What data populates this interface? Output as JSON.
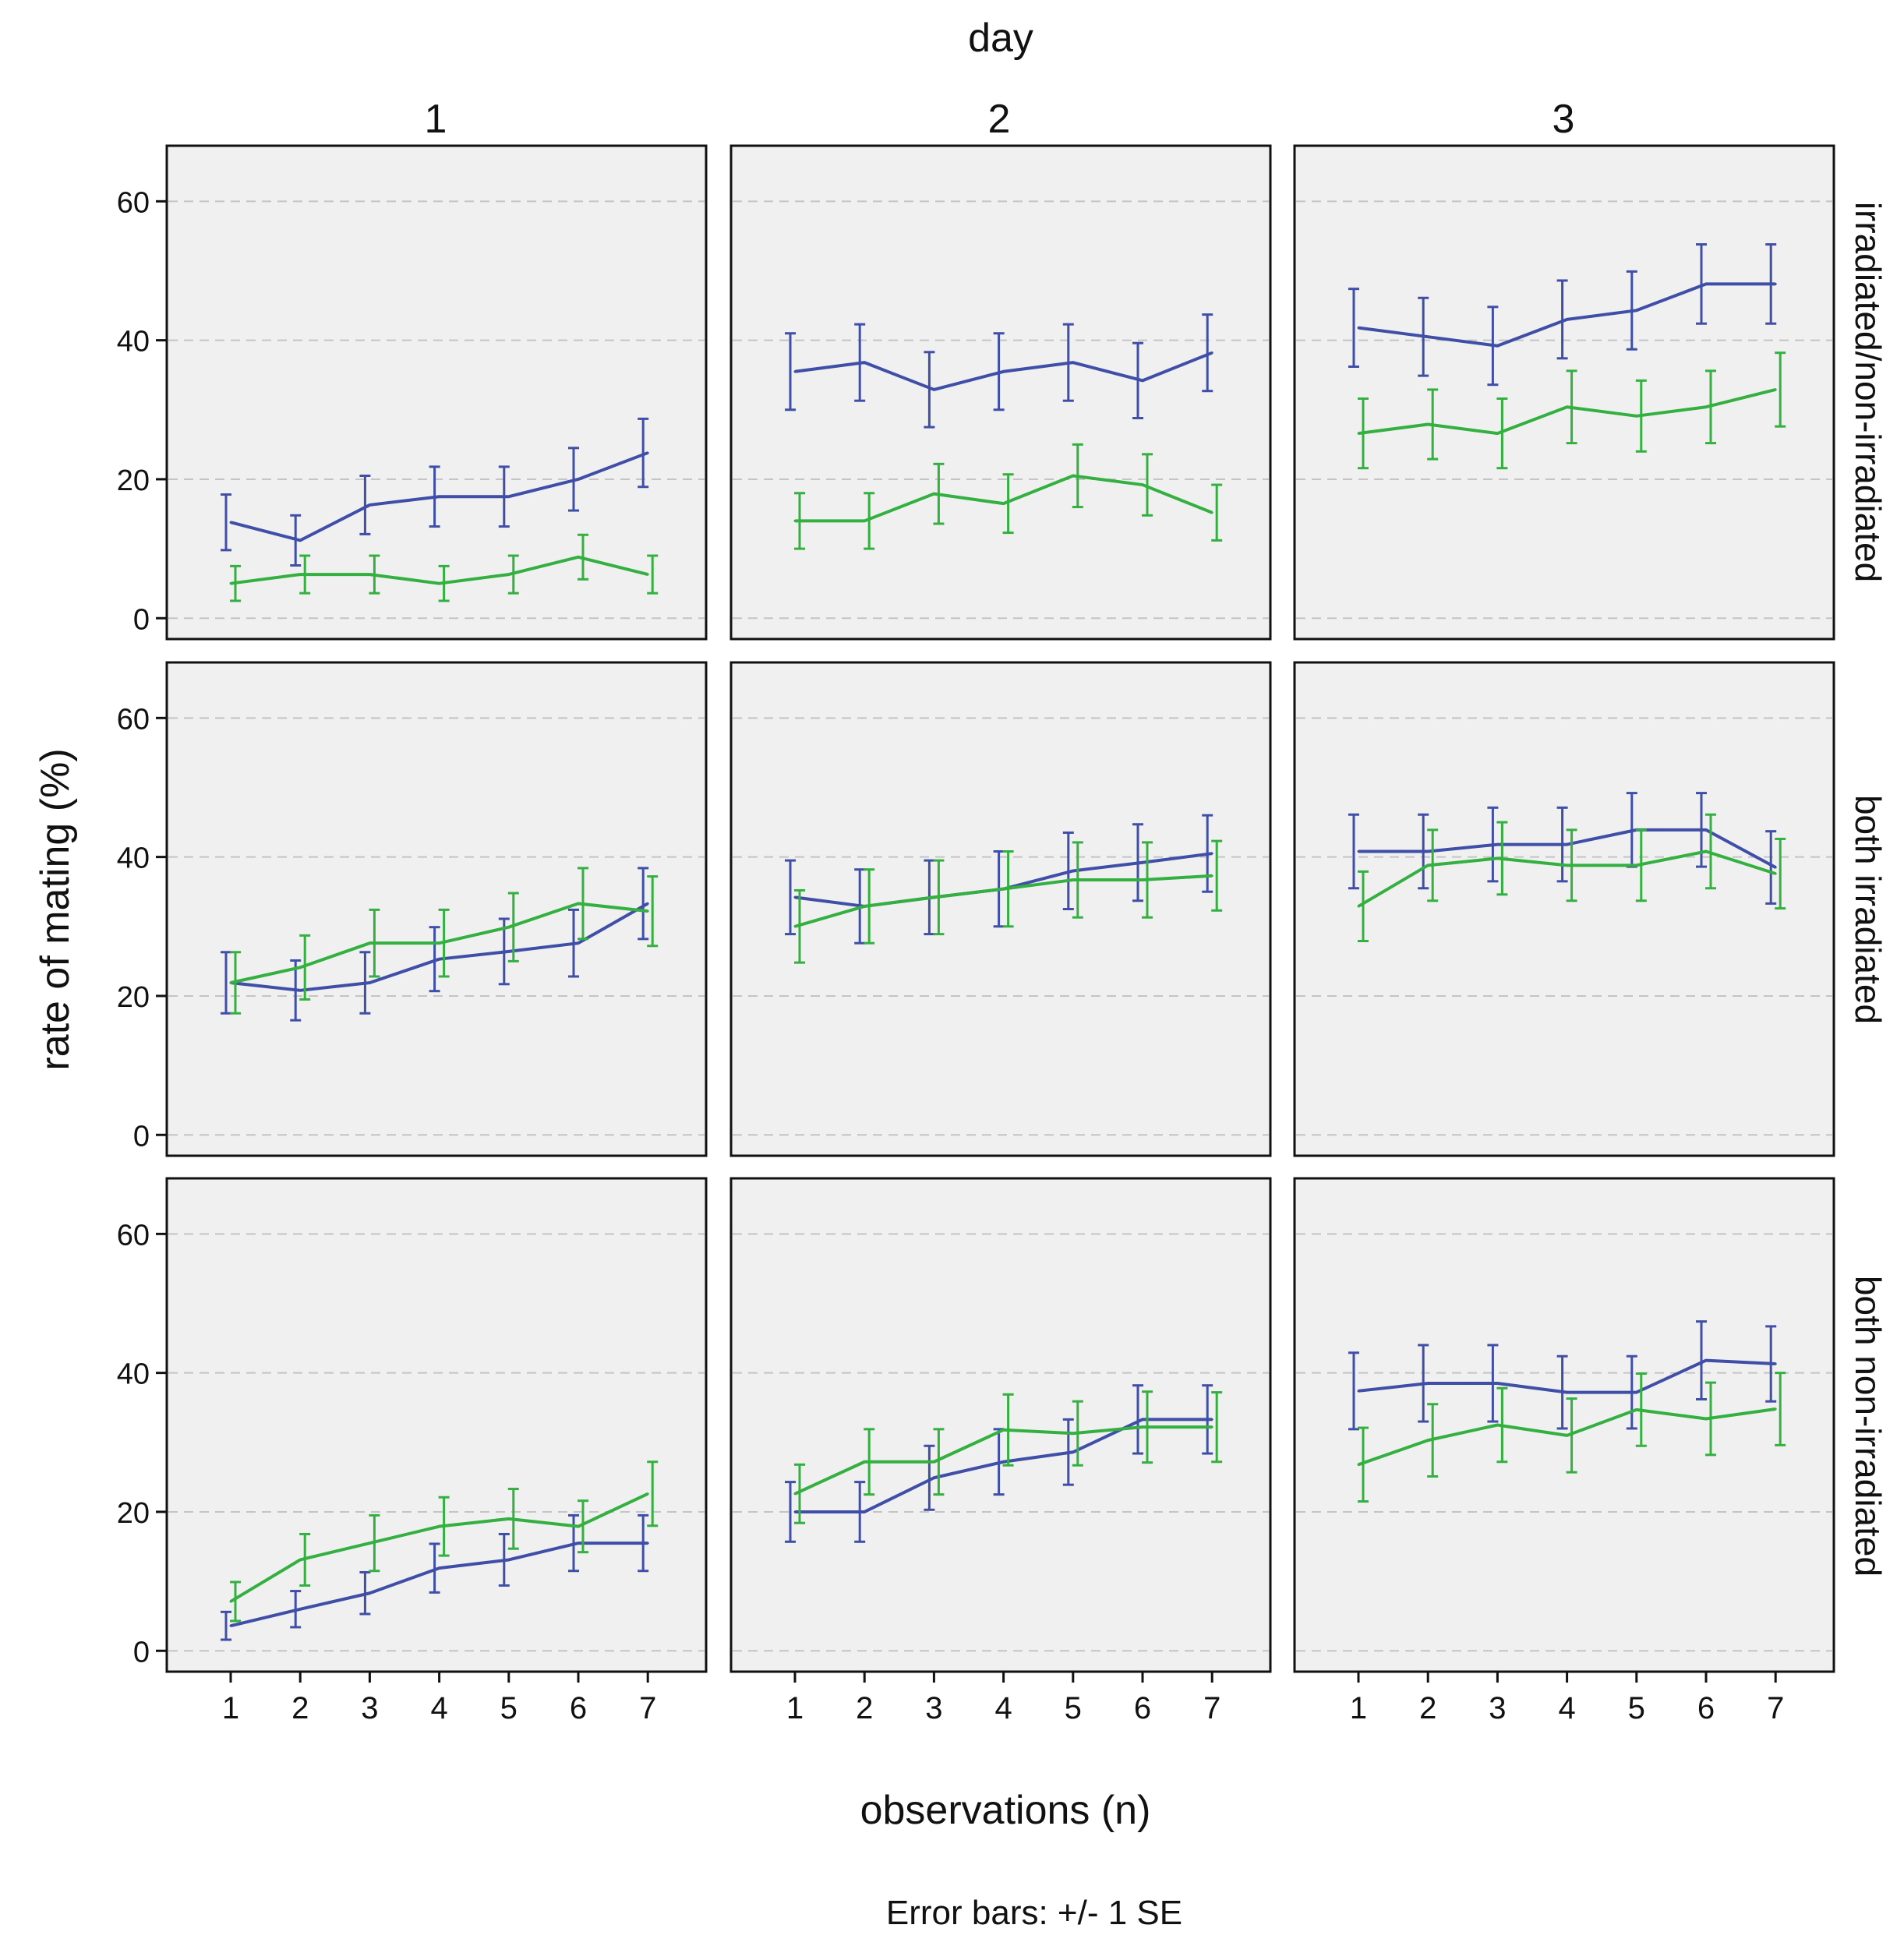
{
  "chart_data": {
    "type": "line",
    "col_var_label": "day",
    "columns": [
      "1",
      "2",
      "3"
    ],
    "rows": [
      "irradiated/non-irradiated",
      "both irradiated",
      "both non-irradiated"
    ],
    "ylabel": "rate of mating (%)",
    "xlabel": "observations (n)",
    "footnote": "Error bars: +/- 1 SE",
    "x": [
      1,
      2,
      3,
      4,
      5,
      6,
      7
    ],
    "x_tick_labels": [
      "1",
      "2",
      "3",
      "4",
      "5",
      "6",
      "7"
    ],
    "ylim": [
      -3,
      68
    ],
    "y_ticks": [
      0,
      20,
      40,
      60
    ],
    "y_tick_labels": [
      "0",
      "20",
      "40",
      "60"
    ],
    "grid": "dashed horizontal at y ticks",
    "colors": {
      "panel_bg": "#f0f0f0",
      "blue_series": "#3f4ea7",
      "green_series": "#33b040",
      "grid": "#c4c4c4"
    },
    "panels": [
      {
        "row": 0,
        "col": 0,
        "series": [
          {
            "name": "blue",
            "values": [
              13.8,
              11.2,
              16.3,
              17.5,
              17.5,
              20.0,
              23.8
            ],
            "err": [
              4.0,
              3.6,
              4.2,
              4.3,
              4.3,
              4.5,
              4.9
            ]
          },
          {
            "name": "green",
            "values": [
              5.0,
              6.3,
              6.3,
              5.0,
              6.3,
              8.8,
              6.3
            ],
            "err": [
              2.5,
              2.7,
              2.7,
              2.5,
              2.7,
              3.2,
              2.7
            ]
          }
        ]
      },
      {
        "row": 0,
        "col": 1,
        "series": [
          {
            "name": "blue",
            "values": [
              35.5,
              36.8,
              32.9,
              35.5,
              36.8,
              34.2,
              38.2
            ],
            "err": [
              5.5,
              5.5,
              5.4,
              5.5,
              5.5,
              5.4,
              5.5
            ]
          },
          {
            "name": "green",
            "values": [
              14.0,
              14.0,
              17.9,
              16.5,
              20.5,
              19.2,
              15.2
            ],
            "err": [
              4.0,
              4.0,
              4.3,
              4.2,
              4.5,
              4.4,
              4.0
            ]
          }
        ]
      },
      {
        "row": 0,
        "col": 2,
        "series": [
          {
            "name": "blue",
            "values": [
              41.8,
              40.5,
              39.2,
              43.0,
              44.3,
              48.1,
              48.1
            ],
            "err": [
              5.6,
              5.6,
              5.6,
              5.6,
              5.6,
              5.7,
              5.7
            ]
          },
          {
            "name": "green",
            "values": [
              26.6,
              27.9,
              26.6,
              30.4,
              29.1,
              30.4,
              32.9
            ],
            "err": [
              5.0,
              5.0,
              5.0,
              5.2,
              5.1,
              5.2,
              5.3
            ]
          }
        ]
      },
      {
        "row": 1,
        "col": 0,
        "series": [
          {
            "name": "blue",
            "values": [
              21.9,
              20.8,
              21.9,
              25.3,
              26.4,
              27.6,
              33.3
            ],
            "err": [
              4.4,
              4.3,
              4.4,
              4.6,
              4.7,
              4.8,
              5.1
            ]
          },
          {
            "name": "green",
            "values": [
              21.9,
              24.1,
              27.6,
              27.6,
              29.9,
              33.3,
              32.2
            ],
            "err": [
              4.4,
              4.6,
              4.8,
              4.8,
              4.9,
              5.1,
              5.0
            ]
          }
        ]
      },
      {
        "row": 1,
        "col": 1,
        "series": [
          {
            "name": "blue",
            "values": [
              34.2,
              32.9,
              34.2,
              35.4,
              38.0,
              39.2,
              40.5
            ],
            "err": [
              5.3,
              5.3,
              5.3,
              5.4,
              5.5,
              5.5,
              5.5
            ]
          },
          {
            "name": "green",
            "values": [
              30.0,
              32.9,
              34.2,
              35.4,
              36.7,
              36.7,
              37.3
            ],
            "err": [
              5.2,
              5.3,
              5.3,
              5.4,
              5.4,
              5.4,
              5.0
            ]
          }
        ]
      },
      {
        "row": 1,
        "col": 2,
        "series": [
          {
            "name": "blue",
            "values": [
              40.8,
              40.8,
              41.8,
              41.8,
              43.9,
              43.9,
              38.5
            ],
            "err": [
              5.3,
              5.3,
              5.3,
              5.3,
              5.3,
              5.3,
              5.2
            ]
          },
          {
            "name": "green",
            "values": [
              32.9,
              38.8,
              39.8,
              38.8,
              38.8,
              40.8,
              37.6
            ],
            "err": [
              5.0,
              5.1,
              5.2,
              5.1,
              5.1,
              5.3,
              5.0
            ]
          }
        ]
      },
      {
        "row": 2,
        "col": 0,
        "series": [
          {
            "name": "blue",
            "values": [
              3.6,
              6.0,
              8.3,
              11.9,
              13.1,
              15.5,
              15.5
            ],
            "err": [
              2.0,
              2.6,
              3.0,
              3.5,
              3.7,
              4.0,
              4.0
            ]
          },
          {
            "name": "green",
            "values": [
              7.1,
              13.1,
              15.5,
              17.9,
              19.0,
              17.9,
              22.6
            ],
            "err": [
              2.8,
              3.7,
              4.0,
              4.2,
              4.3,
              3.7,
              4.6
            ]
          }
        ]
      },
      {
        "row": 2,
        "col": 1,
        "series": [
          {
            "name": "blue",
            "values": [
              20.0,
              20.0,
              24.9,
              27.2,
              28.6,
              33.3,
              33.3
            ],
            "err": [
              4.3,
              4.3,
              4.6,
              4.7,
              4.7,
              4.9,
              4.9
            ]
          },
          {
            "name": "green",
            "values": [
              22.6,
              27.2,
              27.2,
              31.8,
              31.3,
              32.2,
              32.2
            ],
            "err": [
              4.2,
              4.7,
              4.7,
              5.1,
              4.6,
              5.1,
              5.0
            ]
          }
        ]
      },
      {
        "row": 2,
        "col": 2,
        "series": [
          {
            "name": "blue",
            "values": [
              37.4,
              38.5,
              38.5,
              37.2,
              37.2,
              41.8,
              41.3
            ],
            "err": [
              5.5,
              5.5,
              5.5,
              5.2,
              5.2,
              5.6,
              5.4
            ]
          },
          {
            "name": "green",
            "values": [
              26.8,
              30.3,
              32.5,
              31.0,
              34.7,
              33.4,
              34.8
            ],
            "err": [
              5.3,
              5.2,
              5.3,
              5.3,
              5.2,
              5.2,
              5.2
            ]
          }
        ]
      }
    ]
  }
}
